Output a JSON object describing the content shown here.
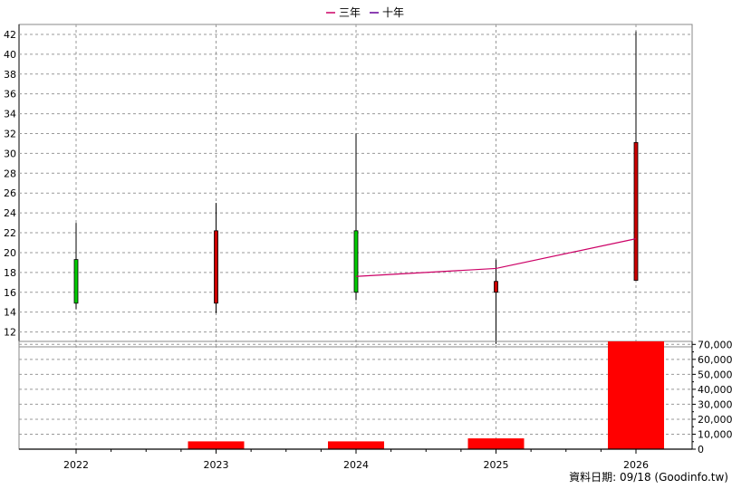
{
  "legend": [
    {
      "name": "三年",
      "color": "#cc0066"
    },
    {
      "name": "十年",
      "color": "#660099"
    }
  ],
  "source": "資料日期: 09/18  (Goodinfo.tw)",
  "chart_data": [
    {
      "type": "candlestick",
      "categories": [
        "2022",
        "2023",
        "2024",
        "2025",
        "2026"
      ],
      "ylim": [
        10.5,
        43
      ],
      "yticks": [
        12,
        14,
        16,
        18,
        20,
        22,
        24,
        26,
        28,
        30,
        32,
        34,
        36,
        38,
        40,
        42
      ],
      "grid": true,
      "candles": [
        {
          "x": "2022",
          "open": 19.3,
          "close": 14.9,
          "high": 23.0,
          "low": 14.3,
          "color": "#00cc00"
        },
        {
          "x": "2023",
          "open": 14.9,
          "close": 22.2,
          "high": 25.0,
          "low": 13.9,
          "color": "#cc0000"
        },
        {
          "x": "2024",
          "open": 22.2,
          "close": 16.0,
          "high": 32.0,
          "low": 15.2,
          "color": "#00cc00"
        },
        {
          "x": "2025",
          "open": 16.0,
          "close": 17.1,
          "high": 19.3,
          "low": 10.8,
          "color": "#cc0000"
        },
        {
          "x": "2026",
          "open": 17.2,
          "close": 31.1,
          "high": 42.3,
          "low": 17.2,
          "color": "#cc0000"
        }
      ],
      "series": [
        {
          "name": "三年",
          "color": "#cc0066",
          "x": [
            "2024",
            "2025",
            "2026"
          ],
          "values": [
            17.6,
            18.4,
            21.4
          ]
        }
      ]
    },
    {
      "type": "bar",
      "categories": [
        "2022",
        "2023",
        "2024",
        "2025",
        "2026"
      ],
      "values": [
        300,
        5200,
        5200,
        7200,
        72000
      ],
      "color": "#ff0000",
      "ylim": [
        0,
        72000
      ],
      "yticks": [
        "0",
        "10,000",
        "20,000",
        "30,000",
        "40,000",
        "50,000",
        "60,000",
        "70,000"
      ],
      "ytick_values": [
        0,
        10000,
        20000,
        30000,
        40000,
        50000,
        60000,
        70000
      ],
      "grid": true
    }
  ]
}
